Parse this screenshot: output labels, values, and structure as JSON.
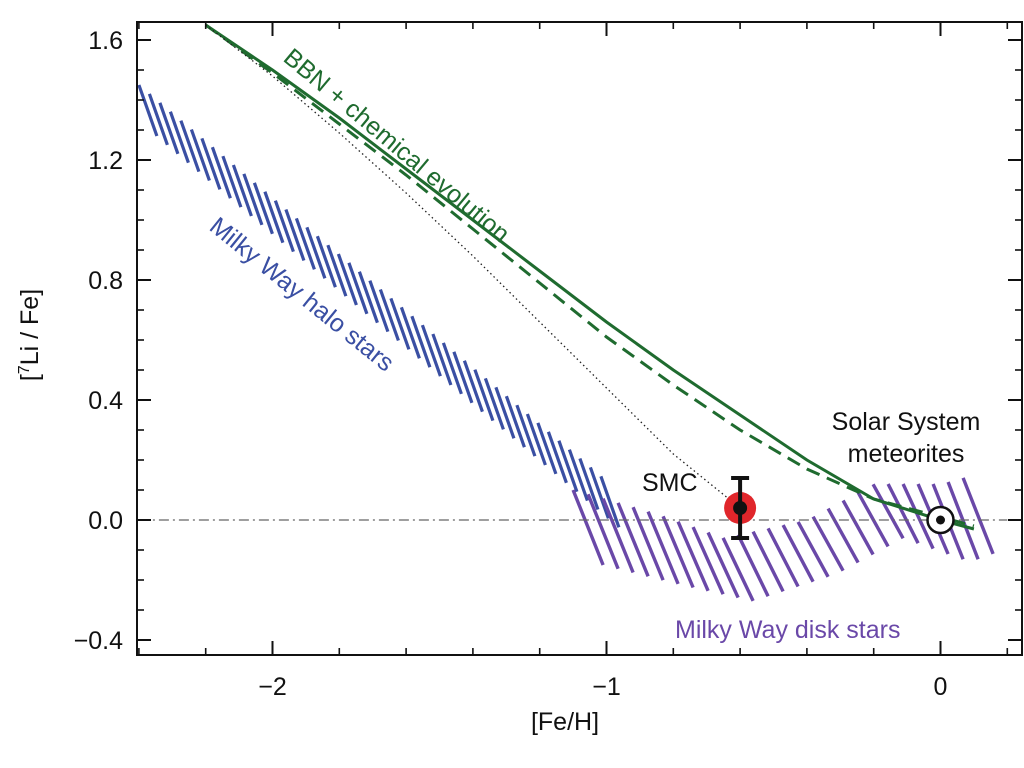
{
  "chart_data": {
    "type": "line",
    "title": "",
    "xlabel": "[Fe/H]",
    "ylabel_prefix": "[",
    "ylabel_sup": "7",
    "ylabel_suffix": "Li / Fe]",
    "xlim": [
      -2.4,
      0.2
    ],
    "ylim": [
      -0.45,
      1.65
    ],
    "x_ticks": [
      -2,
      -1,
      0
    ],
    "x_tick_labels": [
      "−2",
      "−1",
      "0"
    ],
    "y_ticks": [
      -0.4,
      0.0,
      0.4,
      0.8,
      1.2,
      1.6
    ],
    "y_tick_labels": [
      "−0.4",
      "0.0",
      "0.4",
      "0.8",
      "1.2",
      "1.6"
    ],
    "colors": {
      "green": "#1f6b2f",
      "blue": "#3a4fa3",
      "purple": "#6a48a8",
      "red": "#e0262b",
      "axis": "#111111"
    },
    "series": [
      {
        "name": "BBN + chemical evolution",
        "style": "solid",
        "x": [
          -2.2,
          -2.0,
          -1.8,
          -1.6,
          -1.4,
          -1.2,
          -1.0,
          -0.8,
          -0.6,
          -0.4,
          -0.2,
          0.0,
          0.1
        ],
        "y": [
          1.65,
          1.5,
          1.34,
          1.17,
          1.0,
          0.83,
          0.66,
          0.5,
          0.35,
          0.2,
          0.07,
          0.0,
          -0.03
        ]
      },
      {
        "style": "dashed",
        "x": [
          -2.2,
          -2.0,
          -1.8,
          -1.6,
          -1.4,
          -1.2,
          -1.0,
          -0.8,
          -0.6,
          -0.4,
          -0.2,
          0.0,
          0.1
        ],
        "y": [
          1.65,
          1.49,
          1.32,
          1.15,
          0.97,
          0.79,
          0.61,
          0.45,
          0.3,
          0.17,
          0.07,
          0.01,
          -0.02
        ]
      },
      {
        "style": "dotted",
        "x": [
          -2.2,
          -2.0,
          -1.8,
          -1.6,
          -1.4,
          -1.2,
          -1.0,
          -0.8,
          -0.6
        ],
        "y": [
          1.65,
          1.48,
          1.29,
          1.09,
          0.88,
          0.66,
          0.44,
          0.22,
          0.04
        ]
      },
      {
        "style": "dash-dot",
        "x": [
          -2.4,
          0.2
        ],
        "y": [
          0.0,
          0.0
        ]
      }
    ],
    "bands": [
      {
        "name": "Milky Way halo stars",
        "upper": {
          "x": [
            -2.4,
            -1.0
          ],
          "y": [
            1.45,
            0.13
          ]
        },
        "lower": {
          "x": [
            -2.4,
            -1.0
          ],
          "y": [
            1.28,
            -0.04
          ]
        }
      },
      {
        "name": "Milky Way disk stars",
        "upper": {
          "x": [
            -1.1,
            -0.85,
            -0.65,
            -0.4,
            -0.2,
            0.0,
            0.1
          ],
          "y": [
            0.1,
            0.02,
            -0.06,
            0.0,
            0.12,
            0.12,
            0.15
          ]
        },
        "lower": {
          "x": [
            -1.1,
            -0.85,
            -0.65,
            -0.4,
            -0.2,
            0.0,
            0.1
          ],
          "y": [
            -0.15,
            -0.22,
            -0.27,
            -0.18,
            -0.06,
            -0.14,
            -0.1
          ]
        }
      }
    ],
    "points": [
      {
        "name": "SMC",
        "x": -0.6,
        "y": 0.04,
        "yerr_low": -0.06,
        "yerr_high": 0.14,
        "color": "#e0262b"
      },
      {
        "name": "Solar System meteorites",
        "x": 0.0,
        "y": 0.0,
        "symbol": "sun"
      }
    ],
    "annotations": {
      "bbn": "BBN + chemical evolution",
      "halo": "Milky Way halo stars",
      "disk": "Milky Way disk stars",
      "smc": "SMC",
      "solar_line1": "Solar System",
      "solar_line2": "meteorites"
    },
    "grid": false,
    "legend": "none"
  }
}
